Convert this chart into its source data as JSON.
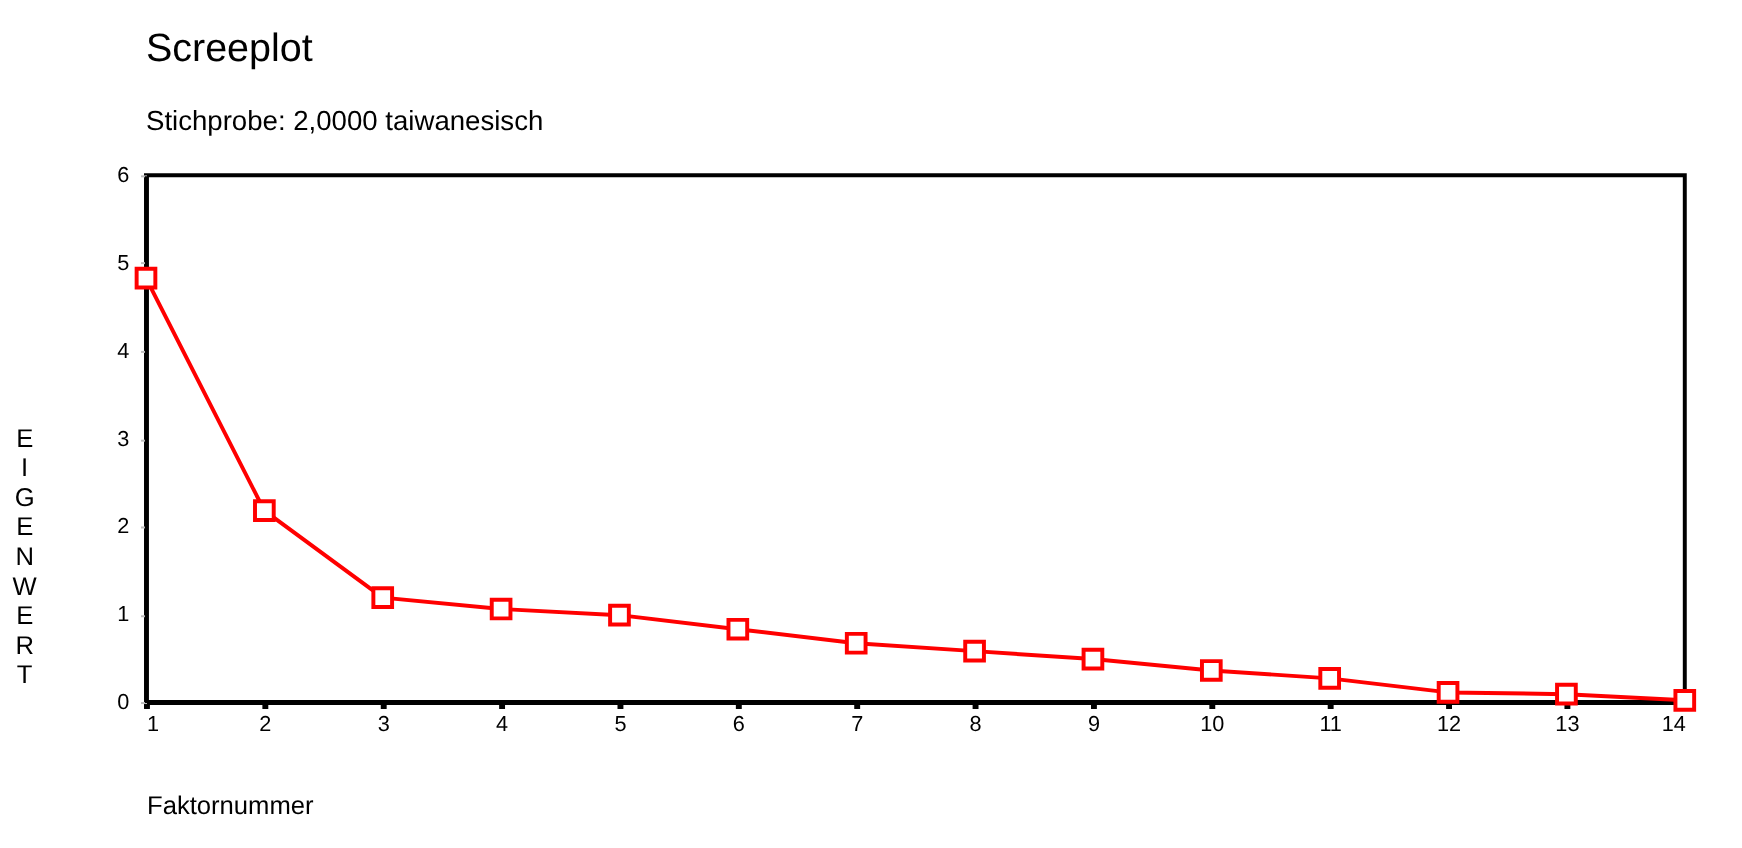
{
  "chart_data": {
    "type": "line",
    "title": "Screeplot",
    "subtitle": "Stichprobe: 2,0000 taiwanesisch",
    "xlabel": "Faktornummer",
    "ylabel": "EIGENWERT",
    "x": [
      1,
      2,
      3,
      4,
      5,
      6,
      7,
      8,
      9,
      10,
      11,
      12,
      13,
      14
    ],
    "series": [
      {
        "color": "#ff0000",
        "values": [
          4.83,
          2.18,
          1.19,
          1.06,
          0.99,
          0.83,
          0.67,
          0.58,
          0.49,
          0.36,
          0.27,
          0.11,
          0.09,
          0.02
        ]
      }
    ],
    "xlim": [
      1,
      14
    ],
    "xticks": [
      1,
      2,
      3,
      4,
      5,
      6,
      7,
      8,
      9,
      10,
      11,
      12,
      13,
      14
    ],
    "ylim": [
      0,
      6
    ],
    "yticks": [
      0,
      1,
      2,
      3,
      4,
      5,
      6
    ],
    "grid": false,
    "marker": "square",
    "line_style": "solid"
  }
}
